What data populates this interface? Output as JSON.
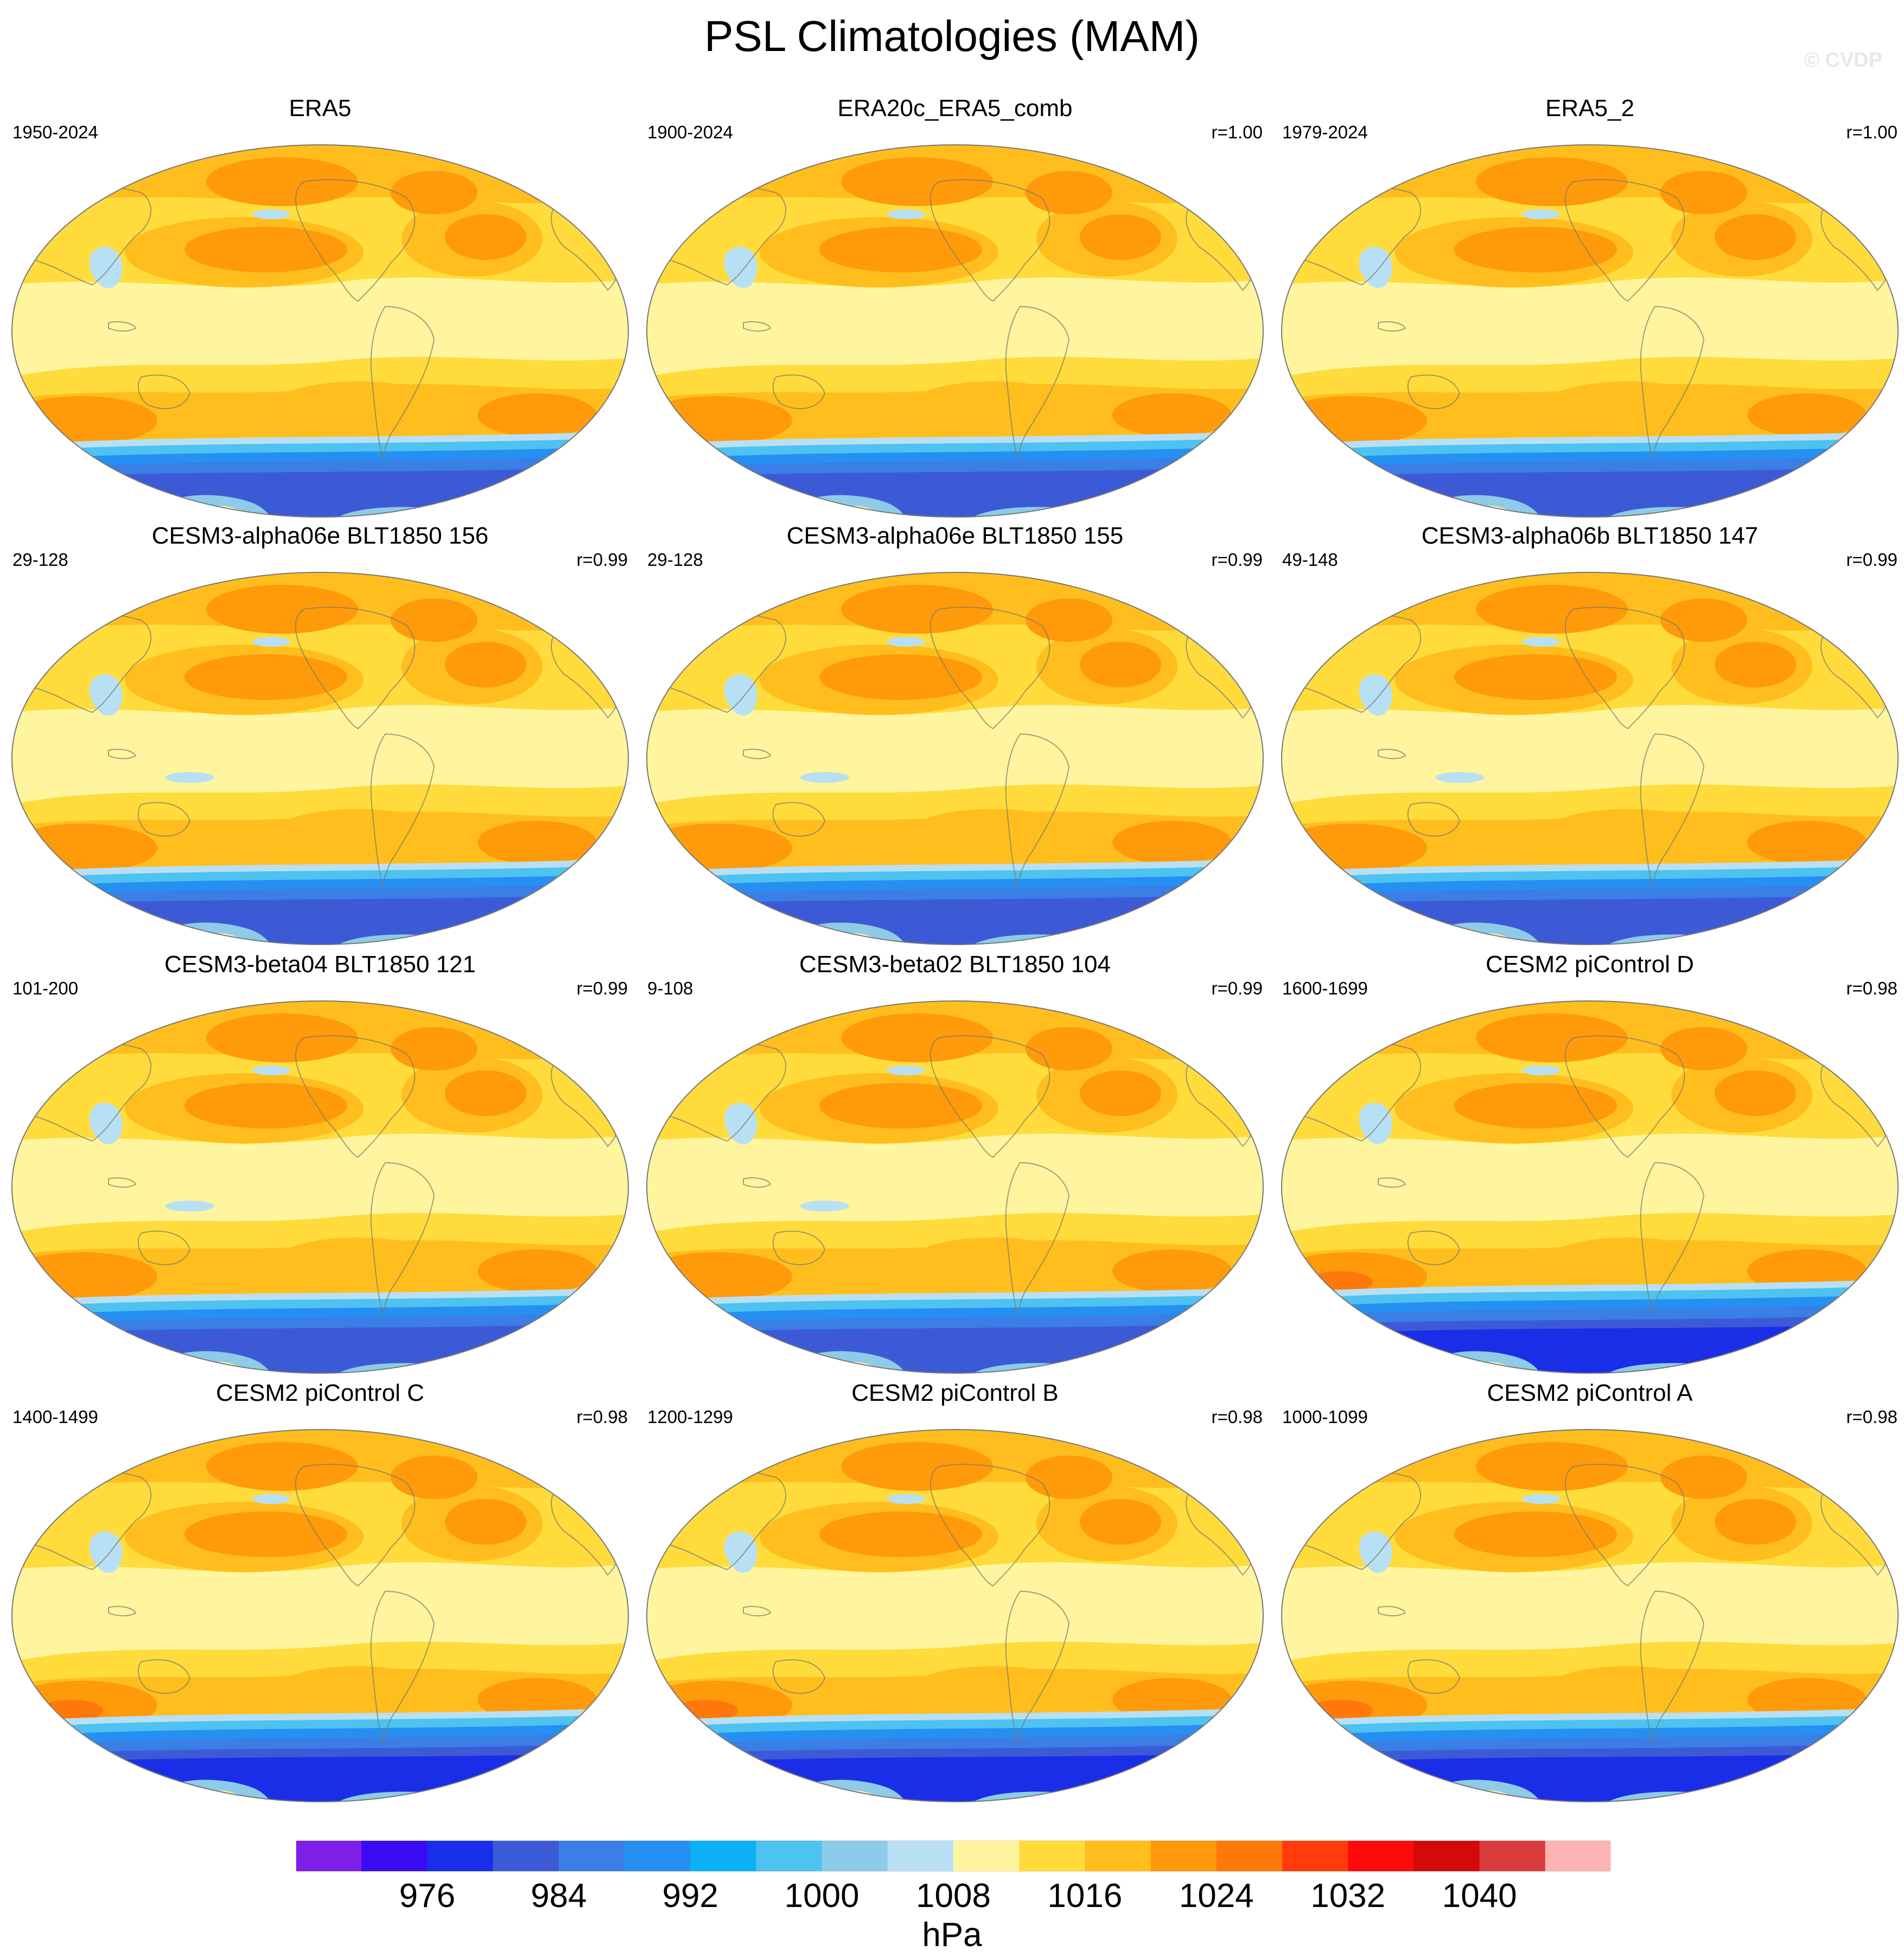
{
  "title": "PSL Climatologies (MAM)",
  "watermark": "© CVDP",
  "units": "hPa",
  "colorbar": {
    "colors": [
      "#7d1fe6",
      "#3a0af0",
      "#1a2ee8",
      "#3c5ad6",
      "#3a7ee6",
      "#2690f2",
      "#0cb0f4",
      "#4ec2f0",
      "#8ecbe8",
      "#b8e0f4",
      "#fff59e",
      "#ffdc3c",
      "#ffbe1e",
      "#ff9a0a",
      "#ff780a",
      "#ff3c0a",
      "#ff0a0a",
      "#d20a0a",
      "#d93c3c",
      "#ffb4b4"
    ],
    "tick_labels": [
      "976",
      "984",
      "992",
      "1000",
      "1008",
      "1016",
      "1024",
      "1032",
      "1040"
    ],
    "tick_positions": [
      2,
      4,
      6,
      8,
      10,
      12,
      14,
      16,
      18
    ]
  },
  "panels": [
    {
      "name": "ERA5",
      "years": "1950-2024",
      "corr": "",
      "variant": "obs"
    },
    {
      "name": "ERA20c_ERA5_comb",
      "years": "1900-2024",
      "corr": "r=1.00",
      "variant": "obs"
    },
    {
      "name": "ERA5_2",
      "years": "1979-2024",
      "corr": "r=1.00",
      "variant": "obs"
    },
    {
      "name": "CESM3-alpha06e BLT1850 156",
      "years": "29-128",
      "corr": "r=0.99",
      "variant": "model"
    },
    {
      "name": "CESM3-alpha06e BLT1850 155",
      "years": "29-128",
      "corr": "r=0.99",
      "variant": "model"
    },
    {
      "name": "CESM3-alpha06b BLT1850 147",
      "years": "49-148",
      "corr": "r=0.99",
      "variant": "model"
    },
    {
      "name": "CESM3-beta04 BLT1850 121",
      "years": "101-200",
      "corr": "r=0.99",
      "variant": "model"
    },
    {
      "name": "CESM3-beta02 BLT1850 104",
      "years": "9-108",
      "corr": "r=0.99",
      "variant": "model"
    },
    {
      "name": "CESM2 piControl D",
      "years": "1600-1699",
      "corr": "r=0.98",
      "variant": "cesm2"
    },
    {
      "name": "CESM2 piControl C",
      "years": "1400-1499",
      "corr": "r=0.98",
      "variant": "cesm2"
    },
    {
      "name": "CESM2 piControl B",
      "years": "1200-1299",
      "corr": "r=0.98",
      "variant": "cesm2"
    },
    {
      "name": "CESM2 piControl A",
      "years": "1000-1099",
      "corr": "r=0.98",
      "variant": "cesm2"
    }
  ]
}
